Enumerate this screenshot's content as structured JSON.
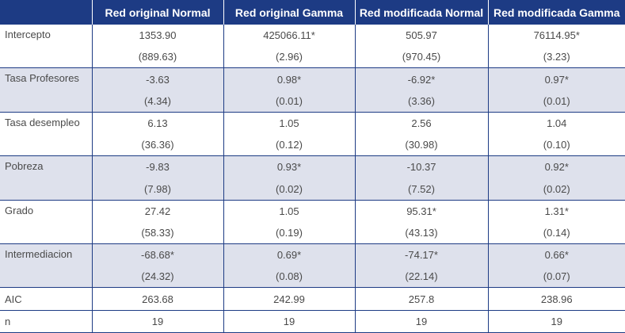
{
  "table": {
    "headers": [
      "",
      "Red original Normal",
      "Red original Gamma",
      "Red modificada Normal",
      "Red modificada Gamma"
    ],
    "rows": [
      {
        "label": "Intercepto",
        "values": [
          "1353.90",
          "425066.11*",
          "505.97",
          "76114.95*"
        ],
        "se": [
          "(889.63)",
          "(2.96)",
          "(970.45)",
          "(3.23)"
        ]
      },
      {
        "label": "Tasa Profesores",
        "values": [
          "-3.63",
          "0.98*",
          "-6.92*",
          "0.97*"
        ],
        "se": [
          "(4.34)",
          "(0.01)",
          "(3.36)",
          "(0.01)"
        ]
      },
      {
        "label": "Tasa desempleo",
        "values": [
          "6.13",
          "1.05",
          "2.56",
          "1.04"
        ],
        "se": [
          "(36.36)",
          "(0.12)",
          "(30.98)",
          "(0.10)"
        ]
      },
      {
        "label": "Pobreza",
        "values": [
          "-9.83",
          "0.93*",
          "-10.37",
          "0.92*"
        ],
        "se": [
          "(7.98)",
          "(0.02)",
          "(7.52)",
          "(0.02)"
        ]
      },
      {
        "label": "Grado",
        "values": [
          "27.42",
          "1.05",
          "95.31*",
          "1.31*"
        ],
        "se": [
          "(58.33)",
          "(0.19)",
          "(43.13)",
          "(0.14)"
        ]
      },
      {
        "label": "Intermediacion",
        "values": [
          "-68.68*",
          "0.69*",
          "-74.17*",
          "0.66*"
        ],
        "se": [
          "(24.32)",
          "(0.08)",
          "(22.14)",
          "(0.07)"
        ]
      }
    ],
    "footer": [
      {
        "label": "AIC",
        "values": [
          "263.68",
          "242.99",
          "257.8",
          "238.96"
        ]
      },
      {
        "label": "n",
        "values": [
          "19",
          "19",
          "19",
          "19"
        ]
      }
    ]
  },
  "colors": {
    "header_bg": "#1d3b84",
    "shade_bg": "#dee1ec",
    "text": "#4a4a4a"
  }
}
